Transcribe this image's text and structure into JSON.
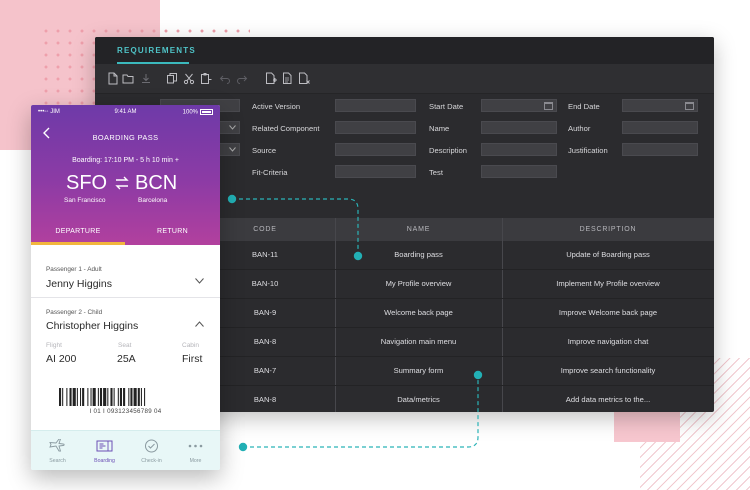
{
  "app": {
    "tab_label": "REQUIREMENTS"
  },
  "toolbar": {
    "icons": [
      "new-file-icon",
      "open-folder-icon",
      "download-icon",
      "copy-icon",
      "cut-icon",
      "paste-icon",
      "undo-icon",
      "redo-icon",
      "add-page-icon",
      "add-doc-icon",
      "delete-doc-icon"
    ]
  },
  "form": {
    "active_version": "Active Version",
    "related_component": "Related Component",
    "source": "Source",
    "fit_criteria": "Fit-Criteria",
    "start_date": "Start Date",
    "name": "Name",
    "description": "Description",
    "test": "Test",
    "end_date": "End Date",
    "author": "Author",
    "justification": "Justification"
  },
  "table": {
    "headers": [
      "CODE",
      "NAME",
      "DESCRIPTION"
    ],
    "rows": [
      {
        "code": "BAN-11",
        "name": "Boarding pass",
        "description": "Update of Boarding pass"
      },
      {
        "code": "BAN-10",
        "name": "My Profile overview",
        "description": "Implement My Profile overview"
      },
      {
        "code": "BAN-9",
        "name": "Welcome back page",
        "description": "Improve Welcome back page"
      },
      {
        "code": "BAN-8",
        "name": "Navigation main menu",
        "description": "Improve navigation chat"
      },
      {
        "code": "BAN-7",
        "name": "Summary form",
        "description": "Improve search functionality"
      },
      {
        "code": "BAN-8",
        "name": "Data/metrics",
        "description": "Add data metrics to the..."
      }
    ]
  },
  "phone": {
    "status": {
      "carrier": "•••◦◦ JIM",
      "time": "9:41 AM",
      "battery": "100%"
    },
    "title": "BOARDING PASS",
    "boarding_time": "Boarding: 17:10 PM  - 5 h 10 min +",
    "from_code": "SFO",
    "to_code": "BCN",
    "from_city": "San Francisco",
    "to_city": "Barcelona",
    "tabs": {
      "departure": "DEPARTURE",
      "return": "RETURN"
    },
    "passenger1": {
      "label": "Passenger 1 - Adult",
      "name": "Jenny Higgins"
    },
    "passenger2": {
      "label": "Passenger 2 - Child",
      "name": "Christopher Higgins"
    },
    "flight": {
      "label": "Flight",
      "value": "AI 200"
    },
    "seat": {
      "label": "Seat",
      "value": "25A"
    },
    "cabin": {
      "label": "Cabin",
      "value": "First"
    },
    "barcode_number": "I 01 I 093123456789 04",
    "nav": {
      "search": "Search",
      "boarding": "Boarding",
      "checkin": "Check-in",
      "more": "More"
    }
  },
  "colors": {
    "accent": "#3bb9bd",
    "purple": "#6e3aa8",
    "magenta": "#b2409e",
    "tab_indicator": "#f2b63d"
  }
}
